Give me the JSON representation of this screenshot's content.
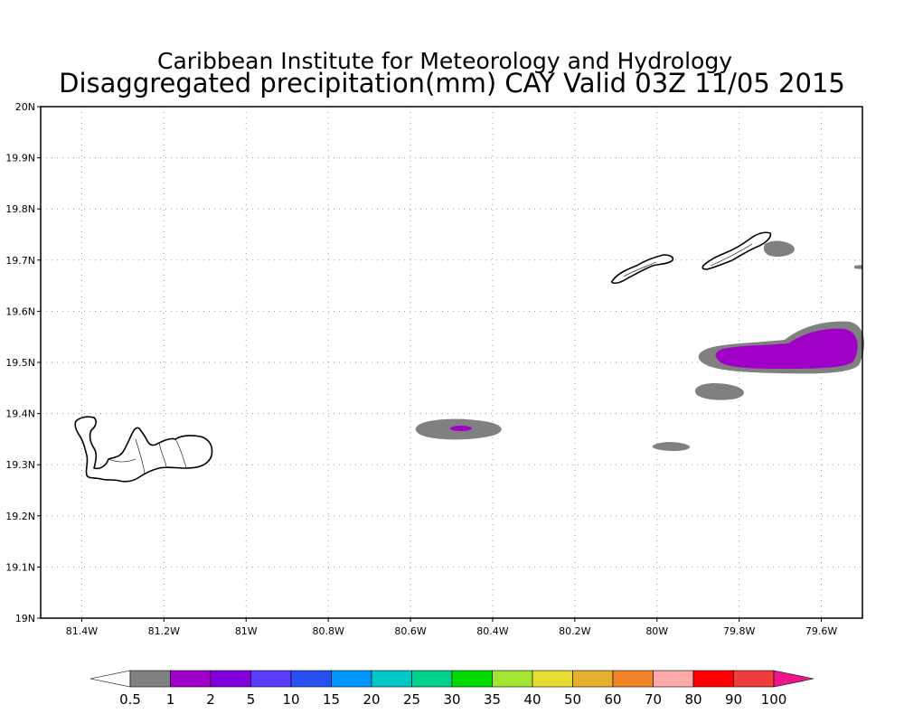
{
  "title": {
    "line1": "Caribbean Institute for Meteorology and Hydrology",
    "line2": "Disaggregated precipitation(mm) CAY Valid 03Z 11/05 2015"
  },
  "map": {
    "lon_range": [
      -81.5,
      -79.5
    ],
    "lat_range": [
      19.0,
      20.0
    ],
    "x_ticks": [
      {
        "lon": -81.4,
        "label": "81.4W"
      },
      {
        "lon": -81.2,
        "label": "81.2W"
      },
      {
        "lon": -81.0,
        "label": "81W"
      },
      {
        "lon": -80.8,
        "label": "80.8W"
      },
      {
        "lon": -80.6,
        "label": "80.6W"
      },
      {
        "lon": -80.4,
        "label": "80.4W"
      },
      {
        "lon": -80.2,
        "label": "80.2W"
      },
      {
        "lon": -80.0,
        "label": "80W"
      },
      {
        "lon": -79.8,
        "label": "79.8W"
      },
      {
        "lon": -79.6,
        "label": "79.6W"
      }
    ],
    "y_ticks": [
      {
        "lat": 19.0,
        "label": "19N"
      },
      {
        "lat": 19.1,
        "label": "19.1N"
      },
      {
        "lat": 19.2,
        "label": "19.2N"
      },
      {
        "lat": 19.3,
        "label": "19.3N"
      },
      {
        "lat": 19.4,
        "label": "19.4N"
      },
      {
        "lat": 19.5,
        "label": "19.5N"
      },
      {
        "lat": 19.6,
        "label": "19.6N"
      },
      {
        "lat": 19.7,
        "label": "19.7N"
      },
      {
        "lat": 19.8,
        "label": "19.8N"
      },
      {
        "lat": 19.9,
        "label": "19.9N"
      },
      {
        "lat": 20.0,
        "label": "20N"
      }
    ],
    "grid": true
  },
  "colorbar": {
    "labels": [
      "0.5",
      "1",
      "2",
      "5",
      "10",
      "15",
      "20",
      "25",
      "30",
      "35",
      "40",
      "50",
      "60",
      "70",
      "80",
      "90",
      "100"
    ],
    "colors": [
      "#ffffff",
      "#808080",
      "#a000c8",
      "#8200dc",
      "#5a3cff",
      "#2850f0",
      "#0096ff",
      "#00c8c8",
      "#00d28c",
      "#00dc00",
      "#a0e632",
      "#e6dc32",
      "#e6af2d",
      "#f08228",
      "#ffaaaa",
      "#ff0000",
      "#f03c3c",
      "#f0148c"
    ]
  },
  "precip_areas": [
    {
      "name": "precip-area-east-large",
      "color": "#808080",
      "level": "0.5-1"
    },
    {
      "name": "precip-area-east-core",
      "color": "#a000c8",
      "level": "1-2"
    },
    {
      "name": "precip-area-central",
      "color": "#808080",
      "level": "0.5-1"
    },
    {
      "name": "precip-area-central-core",
      "color": "#a000c8",
      "level": "1-2"
    },
    {
      "name": "precip-area-east-small-1",
      "color": "#808080",
      "level": "0.5-1"
    },
    {
      "name": "precip-area-east-small-2",
      "color": "#808080",
      "level": "0.5-1"
    },
    {
      "name": "precip-area-northeast",
      "color": "#808080",
      "level": "0.5-1"
    },
    {
      "name": "precip-area-edge",
      "color": "#808080",
      "level": "0.5-1"
    }
  ]
}
